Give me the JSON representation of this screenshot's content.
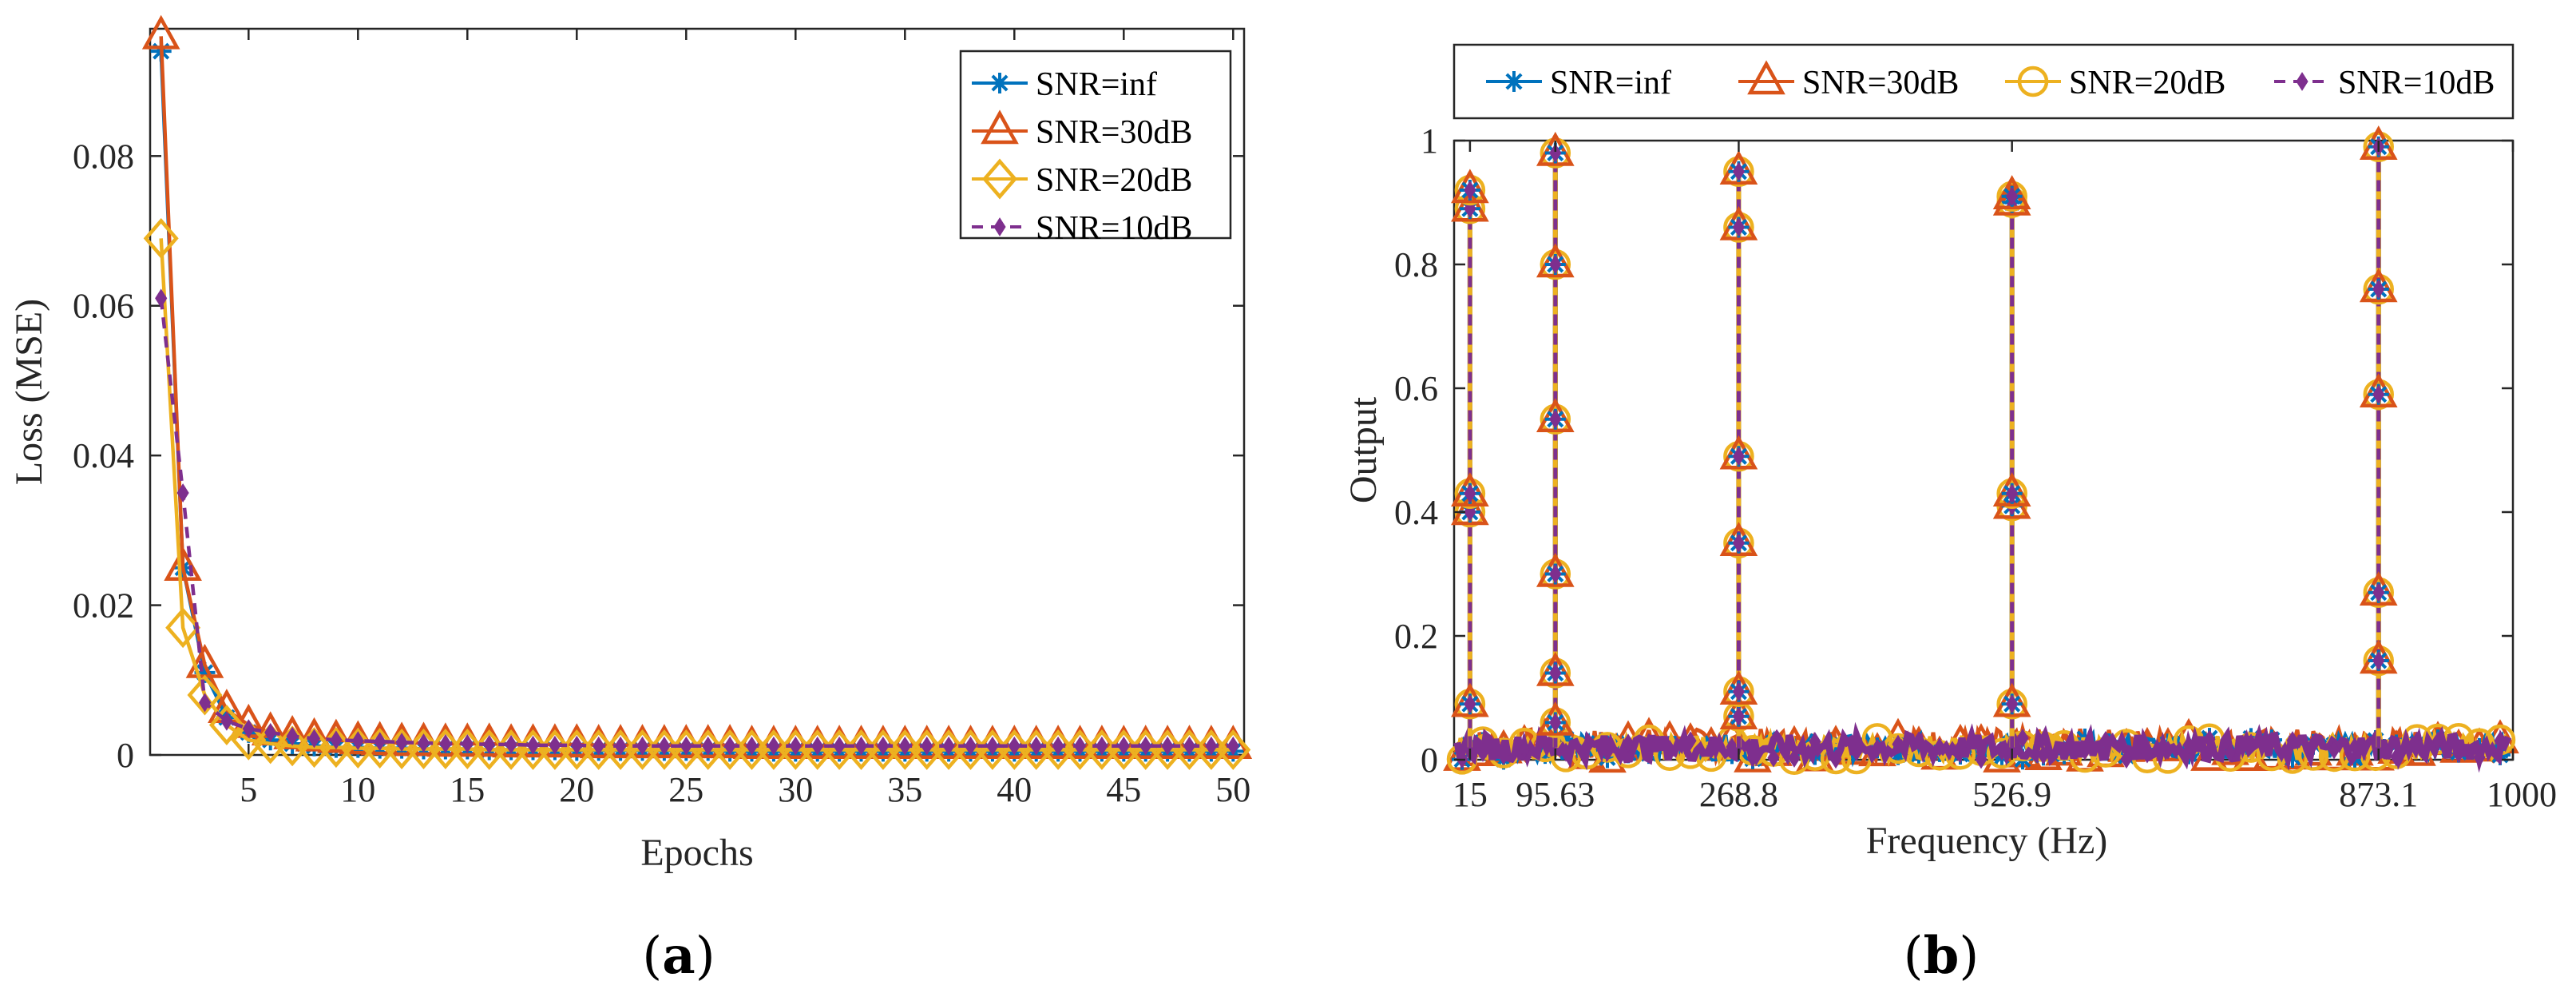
{
  "captions": {
    "a": "a",
    "b": "b"
  },
  "colors": {
    "inf": "#0072BD",
    "db30": "#D95319",
    "db20": "#EDB120",
    "db10": "#7E2F8E"
  },
  "chart_data": [
    {
      "type": "line",
      "id": "a",
      "title": "",
      "xlabel": "Epochs",
      "ylabel": "Loss (MSE)",
      "xlim": [
        0.5,
        50.5
      ],
      "ylim": [
        0,
        0.097
      ],
      "xticks": [
        5,
        10,
        15,
        20,
        25,
        30,
        35,
        40,
        45,
        50
      ],
      "xtick_labels": [
        "5",
        "10",
        "15",
        "20",
        "25",
        "30",
        "35",
        "40",
        "45",
        "50"
      ],
      "yticks": [
        0,
        0.02,
        0.04,
        0.06,
        0.08
      ],
      "ytick_labels": [
        "0",
        "0.02",
        "0.04",
        "0.06",
        "0.08"
      ],
      "legend_position": "top-right",
      "x": [
        1,
        2,
        3,
        4,
        5,
        6,
        7,
        8,
        9,
        10,
        11,
        12,
        13,
        14,
        15,
        16,
        17,
        18,
        19,
        20,
        21,
        22,
        23,
        24,
        25,
        26,
        27,
        28,
        29,
        30,
        31,
        32,
        33,
        34,
        35,
        36,
        37,
        38,
        39,
        40,
        41,
        42,
        43,
        44,
        45,
        46,
        47,
        48,
        49,
        50
      ],
      "series": [
        {
          "name": "SNR=inf",
          "key": "inf",
          "marker": "asterisk",
          "dash": "solid",
          "values": [
            0.094,
            0.025,
            0.011,
            0.005,
            0.003,
            0.002,
            0.0015,
            0.0012,
            0.001,
            0.001,
            0.0009,
            0.0009,
            0.0008,
            0.0008,
            0.0008,
            0.0007,
            0.0007,
            0.0007,
            0.0007,
            0.0006,
            0.0006,
            0.0006,
            0.0006,
            0.0006,
            0.0006,
            0.0006,
            0.0005,
            0.0005,
            0.0005,
            0.0005,
            0.0005,
            0.0005,
            0.0005,
            0.0005,
            0.0005,
            0.0005,
            0.0005,
            0.0005,
            0.0005,
            0.0005,
            0.0005,
            0.0005,
            0.0005,
            0.0005,
            0.0005,
            0.0005,
            0.0005,
            0.0005,
            0.0005,
            0.0005
          ]
        },
        {
          "name": "SNR=30dB",
          "key": "db30",
          "marker": "triangle",
          "dash": "solid",
          "values": [
            0.096,
            0.025,
            0.012,
            0.006,
            0.004,
            0.003,
            0.0025,
            0.0022,
            0.002,
            0.0018,
            0.0017,
            0.0016,
            0.0016,
            0.0015,
            0.0015,
            0.0015,
            0.0014,
            0.0014,
            0.0014,
            0.0014,
            0.0013,
            0.0013,
            0.0013,
            0.0013,
            0.0013,
            0.0013,
            0.0013,
            0.0012,
            0.0012,
            0.0012,
            0.0012,
            0.0012,
            0.0012,
            0.0012,
            0.0012,
            0.0012,
            0.0012,
            0.0012,
            0.0012,
            0.0012,
            0.0012,
            0.0012,
            0.0012,
            0.0012,
            0.0012,
            0.0012,
            0.0012,
            0.0012,
            0.0012,
            0.0012
          ]
        },
        {
          "name": "SNR=20dB",
          "key": "db20",
          "marker": "diamond",
          "dash": "solid",
          "values": [
            0.069,
            0.017,
            0.008,
            0.004,
            0.002,
            0.0015,
            0.0012,
            0.001,
            0.001,
            0.0009,
            0.0009,
            0.0008,
            0.0008,
            0.0008,
            0.0008,
            0.0007,
            0.0007,
            0.0007,
            0.0007,
            0.0007,
            0.0007,
            0.0007,
            0.0007,
            0.0007,
            0.0007,
            0.0007,
            0.0007,
            0.0007,
            0.0007,
            0.0007,
            0.0007,
            0.0007,
            0.0007,
            0.0007,
            0.0007,
            0.0007,
            0.0007,
            0.0007,
            0.0007,
            0.0007,
            0.0007,
            0.0007,
            0.0007,
            0.0007,
            0.0007,
            0.0007,
            0.0007,
            0.0007,
            0.0007,
            0.0007
          ]
        },
        {
          "name": "SNR=10dB",
          "key": "db10",
          "marker": "smalldiamond",
          "dash": "dashed",
          "values": [
            0.061,
            0.035,
            0.007,
            0.0045,
            0.0035,
            0.003,
            0.0025,
            0.0022,
            0.002,
            0.0019,
            0.0018,
            0.0017,
            0.0016,
            0.0015,
            0.0015,
            0.0014,
            0.0014,
            0.0013,
            0.0013,
            0.0013,
            0.0012,
            0.0012,
            0.0012,
            0.0012,
            0.0012,
            0.0012,
            0.0012,
            0.0012,
            0.0012,
            0.0012,
            0.0012,
            0.0012,
            0.0012,
            0.0012,
            0.0012,
            0.0012,
            0.0012,
            0.0012,
            0.0012,
            0.0012,
            0.0012,
            0.0012,
            0.0012,
            0.0012,
            0.0012,
            0.0012,
            0.0012,
            0.0012,
            0.0012,
            0.0012
          ]
        }
      ]
    },
    {
      "type": "line",
      "id": "b",
      "title": "",
      "xlabel": "Frequency (Hz)",
      "ylabel": "Output",
      "xlim": [
        0,
        1000
      ],
      "ylim": [
        0,
        1
      ],
      "xticks": [
        15,
        95.63,
        268.8,
        526.9,
        873.1,
        1000
      ],
      "xtick_labels": [
        "15",
        "95.63",
        "268.8",
        "526.9",
        "873.1",
        "1000"
      ],
      "yticks": [
        0,
        0.2,
        0.4,
        0.6,
        0.8,
        1
      ],
      "ytick_labels": [
        "0",
        "0.2",
        "0.4",
        "0.6",
        "0.8",
        "1"
      ],
      "legend_position": "top-outside",
      "noise_floor": [
        0,
        0.05
      ],
      "peaks": [
        {
          "x": 15,
          "height": 0.92,
          "levels": [
            0.09,
            0.4,
            0.43,
            0.89,
            0.92
          ]
        },
        {
          "x": 95.63,
          "height": 0.98,
          "levels": [
            0.06,
            0.14,
            0.3,
            0.55,
            0.8,
            0.98
          ]
        },
        {
          "x": 268.8,
          "height": 0.95,
          "levels": [
            0.07,
            0.11,
            0.35,
            0.49,
            0.86,
            0.95
          ]
        },
        {
          "x": 526.9,
          "height": 0.91,
          "levels": [
            0.09,
            0.41,
            0.43,
            0.9,
            0.91
          ]
        },
        {
          "x": 873.1,
          "height": 0.99,
          "levels": [
            0.16,
            0.27,
            0.59,
            0.76,
            0.99
          ]
        }
      ],
      "series": [
        {
          "name": "SNR=inf",
          "key": "inf",
          "marker": "asterisk",
          "dash": "solid"
        },
        {
          "name": "SNR=30dB",
          "key": "db30",
          "marker": "triangle",
          "dash": "solid"
        },
        {
          "name": "SNR=20dB",
          "key": "db20",
          "marker": "circle",
          "dash": "solid"
        },
        {
          "name": "SNR=10dB",
          "key": "db10",
          "marker": "smalldiamond",
          "dash": "dashed"
        }
      ]
    }
  ]
}
